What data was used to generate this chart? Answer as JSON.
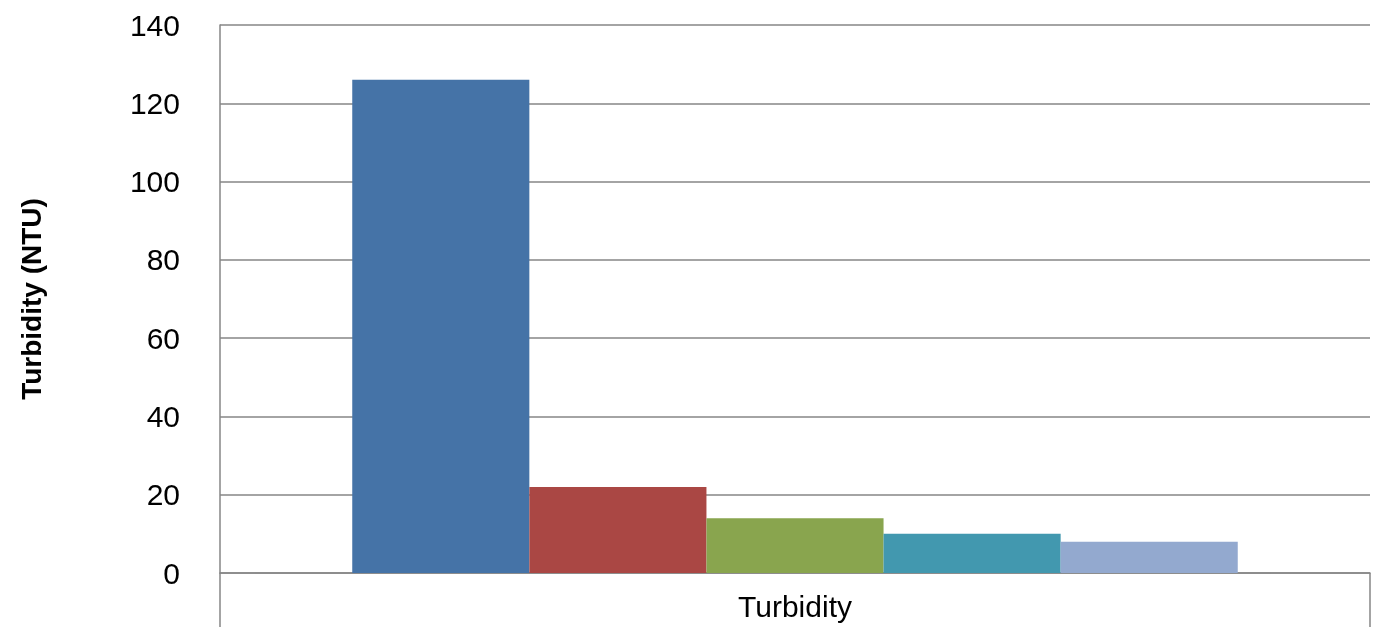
{
  "chart_data": {
    "type": "bar",
    "ylabel": "Turbidity (NTU)",
    "categories": [
      "Turbidity"
    ],
    "series": [
      {
        "color": "#4573a7",
        "values": [
          126
        ]
      },
      {
        "color": "#aa4744",
        "values": [
          22
        ]
      },
      {
        "color": "#89a54e",
        "values": [
          14
        ]
      },
      {
        "color": "#4298af",
        "values": [
          10
        ]
      },
      {
        "color": "#93a9cf",
        "values": [
          8
        ]
      }
    ],
    "ylim": [
      0,
      140
    ],
    "yticks": [
      0,
      20,
      40,
      60,
      80,
      100,
      120,
      140
    ],
    "grid": "y"
  }
}
